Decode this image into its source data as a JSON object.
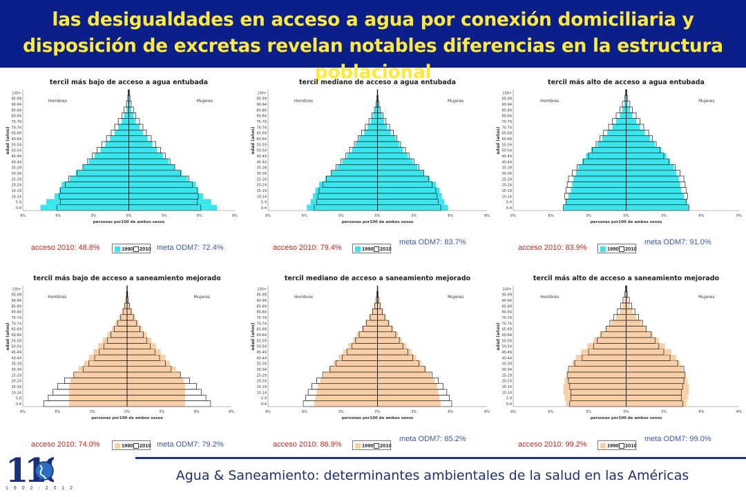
{
  "title": "las desigualdades en acceso a agua por conexión domiciliaria y disposición de excretas revelan notables diferencias en la estructura poblacional",
  "footer": "Agua & Saneamiento: determinantes ambientales de la salud en las Américas",
  "logo": {
    "text": "110",
    "years": "1 9 0 2 - 2 0 1 2"
  },
  "colors": {
    "header_bg": "#0a1f8a",
    "title": "#ffe93a",
    "water": "#38e6ee",
    "sanitation": "#f8cfa6",
    "acceso": "#c8231e",
    "meta": "#3a56a8"
  },
  "chart_data": [
    {
      "type": "bar",
      "title": "tercil más bajo de acceso a agua entubada",
      "xlabel": "personas por100 de ambos sexos",
      "ylabel": "edad (años)",
      "left_label": "Hombres",
      "right_label": "Mujeres",
      "age_groups": [
        "0-4",
        "5-9",
        "10-14",
        "15-19",
        "20-24",
        "25-29",
        "30-34",
        "35-39",
        "40-44",
        "45-49",
        "50-54",
        "55-59",
        "60-64",
        "65-69",
        "70-74",
        "75-79",
        "80-84",
        "85-89",
        "90-94",
        "95-99",
        "100+"
      ],
      "x_ticks": [
        "9%",
        "6%",
        "3%",
        "0%",
        "3%",
        "6%",
        "9%"
      ],
      "xlim": [
        -9,
        9
      ],
      "series": [
        {
          "name": "1990",
          "values": [
            7.5,
            7.0,
            6.3,
            5.9,
            5.7,
            5.0,
            4.5,
            3.9,
            3.4,
            2.9,
            2.4,
            2.0,
            1.6,
            1.2,
            0.9,
            0.6,
            0.4,
            0.2,
            0.1,
            0.05,
            0.02
          ]
        },
        {
          "name": "2010",
          "values": [
            6.1,
            5.8,
            5.9,
            5.8,
            5.4,
            5.1,
            4.4,
            3.9,
            3.5,
            3.1,
            2.7,
            2.3,
            1.9,
            1.5,
            1.2,
            0.9,
            0.6,
            0.4,
            0.2,
            0.1,
            0.05
          ]
        }
      ],
      "acceso": "acceso 2010:  48.8%",
      "meta": "meta ODM7:  72.4%",
      "legend": [
        "1990",
        "2010"
      ]
    },
    {
      "type": "bar",
      "title": "tercil mediano de acceso a agua entubada",
      "xlabel": "personas por100 de ambos sexos",
      "ylabel": "edad (años)",
      "left_label": "Hombres",
      "right_label": "Mujeres",
      "age_groups": [
        "0-4",
        "5-9",
        "10-14",
        "15-19",
        "20-24",
        "25-29",
        "30-34",
        "35-39",
        "40-44",
        "45-49",
        "50-54",
        "55-59",
        "60-64",
        "65-69",
        "70-74",
        "75-79",
        "80-84",
        "85-89",
        "90-94",
        "95-99",
        "100+"
      ],
      "x_ticks": [
        "9%",
        "6%",
        "3%",
        "0%",
        "3%",
        "6%",
        "9%"
      ],
      "xlim": [
        -9,
        9
      ],
      "series": [
        {
          "name": "1990",
          "values": [
            5.8,
            5.5,
            5.3,
            5.1,
            4.8,
            4.3,
            3.8,
            3.3,
            2.9,
            2.5,
            2.1,
            1.8,
            1.5,
            1.1,
            0.8,
            0.55,
            0.35,
            0.2,
            0.1,
            0.05,
            0.02
          ]
        },
        {
          "name": "2010",
          "values": [
            5.2,
            5.0,
            4.9,
            4.8,
            4.5,
            4.2,
            3.8,
            3.4,
            3.0,
            2.6,
            2.3,
            1.9,
            1.6,
            1.3,
            1.0,
            0.7,
            0.45,
            0.25,
            0.12,
            0.05,
            0.02
          ]
        }
      ],
      "acceso": "acceso 2010:  79.4%",
      "meta": "meta ODM7:  83.7%",
      "legend": [
        "1990",
        "2010"
      ]
    },
    {
      "type": "bar",
      "title": "tercil más alto de acceso a agua entubada",
      "xlabel": "personas por100 de ambos sexos",
      "ylabel": "edad (años)",
      "left_label": "Hombres",
      "right_label": "Mujeres",
      "age_groups": [
        "0-4",
        "5-9",
        "10-14",
        "15-19",
        "20-24",
        "25-29",
        "30-34",
        "35-39",
        "40-44",
        "45-49",
        "50-54",
        "55-59",
        "60-64",
        "65-69",
        "70-74",
        "75-79",
        "80-84",
        "85-89",
        "90-94",
        "95-99",
        "100+"
      ],
      "x_ticks": [
        "9%",
        "6%",
        "3%",
        "0%",
        "3%",
        "6%",
        "9%"
      ],
      "xlim": [
        -9,
        9
      ],
      "series": [
        {
          "name": "1990",
          "values": [
            5.0,
            4.8,
            4.6,
            4.4,
            4.3,
            4.2,
            4.0,
            3.8,
            3.5,
            3.2,
            2.8,
            2.3,
            1.9,
            1.5,
            1.1,
            0.8,
            0.5,
            0.3,
            0.15,
            0.05,
            0.02
          ]
        },
        {
          "name": "2010",
          "values": [
            5.0,
            4.8,
            4.9,
            4.8,
            4.7,
            4.6,
            4.3,
            3.9,
            3.4,
            3.0,
            2.7,
            2.4,
            2.1,
            1.8,
            1.4,
            1.1,
            0.8,
            0.5,
            0.3,
            0.1,
            0.05
          ]
        }
      ],
      "acceso": "acceso 2010:  83.9%",
      "meta": "meta ODM7:  91.0%",
      "legend": [
        "1990",
        "2010"
      ]
    },
    {
      "type": "bar",
      "title": "tercil más bajo de acceso a saneamiento mejorado",
      "xlabel": "personas por100 de ambos sexos",
      "ylabel": "edad (años)",
      "left_label": "Hombres",
      "right_label": "Mujeres",
      "age_groups": [
        "0-4",
        "5-9",
        "10-14",
        "15-19",
        "20-24",
        "25-29",
        "30-34",
        "35-39",
        "40-44",
        "45-49",
        "50-54",
        "55-59",
        "60-64",
        "65-69",
        "70-74",
        "75-79",
        "80-84",
        "85-89",
        "90-94",
        "95-99",
        "100+"
      ],
      "x_ticks": [
        "9%",
        "6%",
        "3%",
        "0%",
        "3%",
        "6%",
        "9%"
      ],
      "xlim": [
        -9,
        9
      ],
      "series": [
        {
          "name": "1990",
          "values": [
            5.0,
            5.0,
            5.0,
            5.0,
            4.9,
            4.6,
            4.2,
            3.7,
            3.3,
            2.9,
            2.5,
            2.1,
            1.7,
            1.3,
            1.0,
            0.7,
            0.45,
            0.25,
            0.1,
            0.05,
            0.02
          ]
        },
        {
          "name": "2010",
          "values": [
            7.2,
            6.8,
            6.4,
            6.0,
            5.4,
            4.6,
            3.8,
            3.3,
            2.8,
            2.4,
            2.0,
            1.7,
            1.4,
            1.1,
            0.8,
            0.55,
            0.35,
            0.2,
            0.1,
            0.05,
            0.02
          ]
        }
      ],
      "acceso": "acceso 2010:  74.0%",
      "meta": "meta ODM7:  79.2%",
      "legend": [
        "1990",
        "2010"
      ]
    },
    {
      "type": "bar",
      "title": "tercil mediano de acceso a saneamiento mejorado",
      "xlabel": "personas por100 de ambos sexos",
      "ylabel": "edad (años)",
      "left_label": "Hombres",
      "right_label": "Mujeres",
      "age_groups": [
        "0-4",
        "5-9",
        "10-14",
        "15-19",
        "20-24",
        "25-29",
        "30-34",
        "35-39",
        "40-44",
        "45-49",
        "50-54",
        "55-59",
        "60-64",
        "65-69",
        "70-74",
        "75-79",
        "80-84",
        "85-89",
        "90-94",
        "95-99",
        "100+"
      ],
      "x_ticks": [
        "9%",
        "6%",
        "3%",
        "0%",
        "3%",
        "6%",
        "9%"
      ],
      "xlim": [
        -9,
        9
      ],
      "series": [
        {
          "name": "1990",
          "values": [
            5.2,
            5.1,
            5.0,
            4.9,
            4.7,
            4.4,
            4.0,
            3.6,
            3.2,
            2.8,
            2.4,
            2.0,
            1.7,
            1.3,
            1.0,
            0.7,
            0.45,
            0.25,
            0.12,
            0.05,
            0.02
          ]
        },
        {
          "name": "2010",
          "values": [
            6.1,
            5.9,
            5.7,
            5.4,
            5.0,
            4.5,
            3.9,
            3.4,
            2.9,
            2.5,
            2.1,
            1.8,
            1.5,
            1.2,
            0.9,
            0.6,
            0.4,
            0.22,
            0.1,
            0.05,
            0.02
          ]
        }
      ],
      "acceso": "acceso 2010:  86.9%",
      "meta": "meta ODM7:  85.2%",
      "legend": [
        "1990",
        "2010"
      ]
    },
    {
      "type": "bar",
      "title": "tercil más alto de acceso a saneamiento mejorado",
      "xlabel": "personas por100 de ambos sexos",
      "ylabel": "edad (años)",
      "left_label": "Hombres",
      "right_label": "Mujeres",
      "age_groups": [
        "0-4",
        "5-9",
        "10-14",
        "15-19",
        "20-24",
        "25-29",
        "30-34",
        "35-39",
        "40-44",
        "45-49",
        "50-54",
        "55-59",
        "60-64",
        "65-69",
        "70-74",
        "75-79",
        "80-84",
        "85-89",
        "90-94",
        "95-99",
        "100+"
      ],
      "x_ticks": [
        "9%",
        "6%",
        "3%",
        "0%",
        "3%",
        "6%",
        "9%"
      ],
      "xlim": [
        -9,
        9
      ],
      "series": [
        {
          "name": "1990",
          "values": [
            4.8,
            4.9,
            5.0,
            5.0,
            4.9,
            4.7,
            4.5,
            4.3,
            4.0,
            3.6,
            3.1,
            2.6,
            2.1,
            1.6,
            1.2,
            0.8,
            0.5,
            0.3,
            0.15,
            0.05,
            0.02
          ]
        },
        {
          "name": "2010",
          "values": [
            4.5,
            4.4,
            4.4,
            4.5,
            4.6,
            4.7,
            4.6,
            4.1,
            3.5,
            3.0,
            2.6,
            2.3,
            2.0,
            1.6,
            1.3,
            1.0,
            0.7,
            0.45,
            0.25,
            0.1,
            0.05
          ]
        }
      ],
      "acceso": "acceso 2010:  99.2%",
      "meta": "meta ODM7:  99.0%",
      "legend": [
        "1990",
        "2010"
      ]
    }
  ]
}
